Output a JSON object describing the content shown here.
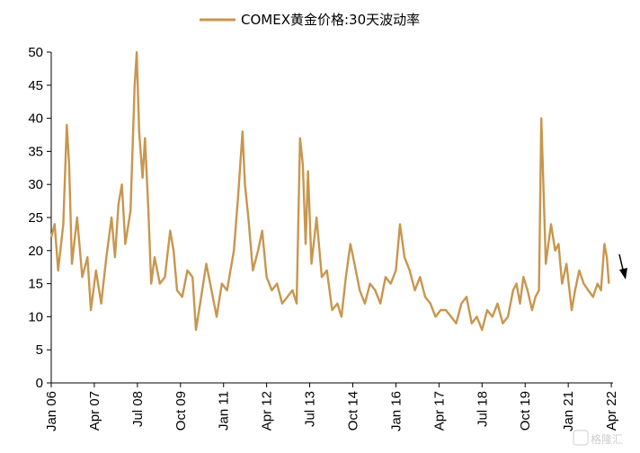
{
  "chart_data": {
    "type": "line",
    "title": "",
    "legend": {
      "position": "top-center",
      "entries": [
        "COMEX黄金价格:30天波动率"
      ]
    },
    "series": [
      {
        "name": "COMEX黄金价格:30天波动率",
        "color": "#c8964e",
        "points": [
          [
            2006.0,
            22
          ],
          [
            2006.1,
            24
          ],
          [
            2006.2,
            17
          ],
          [
            2006.35,
            24
          ],
          [
            2006.45,
            39
          ],
          [
            2006.52,
            33
          ],
          [
            2006.6,
            18
          ],
          [
            2006.75,
            25
          ],
          [
            2006.9,
            16
          ],
          [
            2007.05,
            19
          ],
          [
            2007.15,
            11
          ],
          [
            2007.3,
            17
          ],
          [
            2007.45,
            12
          ],
          [
            2007.6,
            19
          ],
          [
            2007.75,
            25
          ],
          [
            2007.85,
            19
          ],
          [
            2007.95,
            27
          ],
          [
            2008.05,
            30
          ],
          [
            2008.15,
            21
          ],
          [
            2008.3,
            26
          ],
          [
            2008.42,
            45
          ],
          [
            2008.48,
            50
          ],
          [
            2008.55,
            38
          ],
          [
            2008.65,
            31
          ],
          [
            2008.72,
            37
          ],
          [
            2008.82,
            26
          ],
          [
            2008.9,
            15
          ],
          [
            2009.0,
            19
          ],
          [
            2009.15,
            15
          ],
          [
            2009.3,
            16
          ],
          [
            2009.45,
            23
          ],
          [
            2009.55,
            20
          ],
          [
            2009.65,
            14
          ],
          [
            2009.8,
            13
          ],
          [
            2009.95,
            17
          ],
          [
            2010.1,
            16
          ],
          [
            2010.2,
            8
          ],
          [
            2010.35,
            13
          ],
          [
            2010.5,
            18
          ],
          [
            2010.65,
            14
          ],
          [
            2010.8,
            10
          ],
          [
            2010.95,
            15
          ],
          [
            2011.1,
            14
          ],
          [
            2011.3,
            20
          ],
          [
            2011.42,
            28
          ],
          [
            2011.55,
            38
          ],
          [
            2011.62,
            30
          ],
          [
            2011.72,
            25
          ],
          [
            2011.85,
            17
          ],
          [
            2012.0,
            20
          ],
          [
            2012.12,
            23
          ],
          [
            2012.25,
            16
          ],
          [
            2012.4,
            14
          ],
          [
            2012.55,
            15
          ],
          [
            2012.7,
            12
          ],
          [
            2012.85,
            13
          ],
          [
            2013.0,
            14
          ],
          [
            2013.12,
            12
          ],
          [
            2013.22,
            37
          ],
          [
            2013.3,
            33
          ],
          [
            2013.38,
            21
          ],
          [
            2013.45,
            32
          ],
          [
            2013.55,
            18
          ],
          [
            2013.7,
            25
          ],
          [
            2013.85,
            16
          ],
          [
            2014.0,
            17
          ],
          [
            2014.15,
            11
          ],
          [
            2014.3,
            12
          ],
          [
            2014.42,
            10
          ],
          [
            2014.55,
            16
          ],
          [
            2014.68,
            21
          ],
          [
            2014.8,
            18
          ],
          [
            2014.95,
            14
          ],
          [
            2015.1,
            12
          ],
          [
            2015.25,
            15
          ],
          [
            2015.4,
            14
          ],
          [
            2015.55,
            12
          ],
          [
            2015.7,
            16
          ],
          [
            2015.85,
            15
          ],
          [
            2016.0,
            17
          ],
          [
            2016.12,
            24
          ],
          [
            2016.25,
            19
          ],
          [
            2016.4,
            17
          ],
          [
            2016.55,
            14
          ],
          [
            2016.7,
            16
          ],
          [
            2016.85,
            13
          ],
          [
            2017.0,
            12
          ],
          [
            2017.15,
            10
          ],
          [
            2017.3,
            11
          ],
          [
            2017.45,
            11
          ],
          [
            2017.6,
            10
          ],
          [
            2017.75,
            9
          ],
          [
            2017.9,
            12
          ],
          [
            2018.05,
            13
          ],
          [
            2018.2,
            9
          ],
          [
            2018.35,
            10
          ],
          [
            2018.5,
            8
          ],
          [
            2018.65,
            11
          ],
          [
            2018.8,
            10
          ],
          [
            2018.95,
            12
          ],
          [
            2019.1,
            9
          ],
          [
            2019.25,
            10
          ],
          [
            2019.4,
            14
          ],
          [
            2019.5,
            15
          ],
          [
            2019.6,
            12
          ],
          [
            2019.7,
            16
          ],
          [
            2019.82,
            14
          ],
          [
            2019.95,
            11
          ],
          [
            2020.05,
            13
          ],
          [
            2020.15,
            14
          ],
          [
            2020.22,
            40
          ],
          [
            2020.28,
            30
          ],
          [
            2020.35,
            18
          ],
          [
            2020.5,
            24
          ],
          [
            2020.62,
            20
          ],
          [
            2020.72,
            21
          ],
          [
            2020.82,
            15
          ],
          [
            2020.95,
            18
          ],
          [
            2021.1,
            11
          ],
          [
            2021.2,
            14
          ],
          [
            2021.32,
            17
          ],
          [
            2021.45,
            15
          ],
          [
            2021.58,
            14
          ],
          [
            2021.72,
            13
          ],
          [
            2021.85,
            15
          ],
          [
            2021.95,
            14
          ],
          [
            2022.05,
            21
          ],
          [
            2022.12,
            19
          ],
          [
            2022.18,
            15
          ]
        ]
      }
    ],
    "x_axis": {
      "range": [
        2006.0,
        2022.3
      ],
      "ticks": [
        {
          "value": 2006.0,
          "label": "Jan 06"
        },
        {
          "value": 2007.25,
          "label": "Apr 07"
        },
        {
          "value": 2008.5,
          "label": "Jul 08"
        },
        {
          "value": 2009.75,
          "label": "Oct 09"
        },
        {
          "value": 2011.0,
          "label": "Jan 11"
        },
        {
          "value": 2012.25,
          "label": "Apr 12"
        },
        {
          "value": 2013.5,
          "label": "Jul 13"
        },
        {
          "value": 2014.75,
          "label": "Oct 14"
        },
        {
          "value": 2016.0,
          "label": "Jan 16"
        },
        {
          "value": 2017.25,
          "label": "Apr 17"
        },
        {
          "value": 2018.5,
          "label": "Jul 18"
        },
        {
          "value": 2019.75,
          "label": "Oct 19"
        },
        {
          "value": 2021.0,
          "label": "Jan 21"
        },
        {
          "value": 2022.25,
          "label": "Apr 22"
        }
      ]
    },
    "y_axis": {
      "range": [
        0,
        50
      ],
      "ticks": [
        "0",
        "5",
        "10",
        "15",
        "20",
        "25",
        "30",
        "35",
        "40",
        "45",
        "50"
      ]
    },
    "grid": false,
    "annotation": {
      "type": "arrow",
      "direction": "down",
      "near_x": 2022.25
    }
  },
  "watermark": {
    "text": "格隆汇"
  }
}
